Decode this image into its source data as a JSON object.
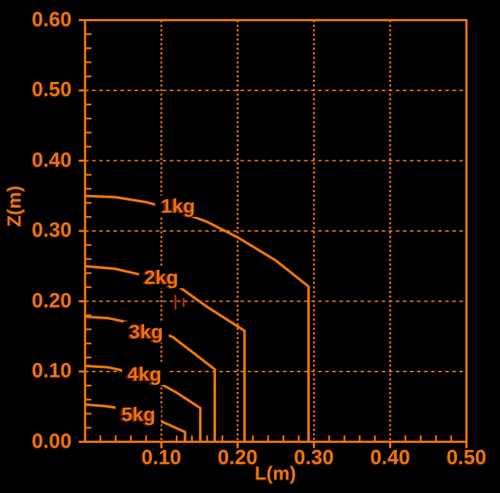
{
  "colors": {
    "background": "#000000",
    "accent": "#ED7409",
    "curve": "#F07806",
    "marker": "#C53000"
  },
  "axes": {
    "x": {
      "label": "L(m)",
      "min": 0,
      "max": 0.5,
      "major_ticks": [
        0.1,
        0.2,
        0.3,
        0.4,
        0.5
      ],
      "tick_labels": [
        "0.10",
        "0.20",
        "0.30",
        "0.40",
        "0.50"
      ],
      "grid": [
        0.1,
        0.2,
        0.3,
        0.4
      ],
      "minor_step": 0.02
    },
    "y": {
      "label": "Z(m)",
      "min": 0,
      "max": 0.6,
      "major_ticks": [
        0.0,
        0.1,
        0.2,
        0.3,
        0.4,
        0.5,
        0.6
      ],
      "tick_labels": [
        "0.00",
        "0.10",
        "0.20",
        "0.30",
        "0.40",
        "0.50",
        "0.60"
      ],
      "grid": [
        0.1,
        0.2,
        0.3,
        0.4,
        0.5
      ],
      "minor_step": 0.02
    }
  },
  "chart_data": {
    "type": "line",
    "xlabel": "L(m)",
    "ylabel": "Z(m)",
    "xlim": [
      0,
      0.5
    ],
    "ylim": [
      0,
      0.6
    ],
    "grid": "dashed",
    "legend_position": "inline-labels",
    "description": "Payload capacity envelopes: each curve shows max vertical reach Z versus horizontal reach L for a given load, ending in a vertical drop to Z=0.",
    "series": [
      {
        "name": "1kg",
        "label_at": [
          0.122,
          0.335
        ],
        "drop_at_l": 0.293,
        "points": [
          [
            0,
            0.35
          ],
          [
            0.04,
            0.348
          ],
          [
            0.08,
            0.341
          ],
          [
            0.12,
            0.329
          ],
          [
            0.16,
            0.313
          ],
          [
            0.2,
            0.291
          ],
          [
            0.25,
            0.258
          ],
          [
            0.293,
            0.221
          ],
          [
            0.293,
            0
          ]
        ]
      },
      {
        "name": "2kg",
        "label_at": [
          0.1,
          0.234
        ],
        "drop_at_l": 0.209,
        "points": [
          [
            0,
            0.25
          ],
          [
            0.04,
            0.246
          ],
          [
            0.08,
            0.236
          ],
          [
            0.12,
            0.223
          ],
          [
            0.16,
            0.192
          ],
          [
            0.209,
            0.158
          ],
          [
            0.209,
            0
          ]
        ]
      },
      {
        "name": "3kg",
        "label_at": [
          0.08,
          0.156
        ],
        "drop_at_l": 0.17,
        "points": [
          [
            0,
            0.178
          ],
          [
            0.03,
            0.176
          ],
          [
            0.06,
            0.169
          ],
          [
            0.09,
            0.159
          ],
          [
            0.115,
            0.149
          ],
          [
            0.145,
            0.124
          ],
          [
            0.17,
            0.103
          ],
          [
            0.17,
            0
          ]
        ]
      },
      {
        "name": "4kg",
        "label_at": [
          0.078,
          0.0955
        ],
        "drop_at_l": 0.151,
        "points": [
          [
            0,
            0.108
          ],
          [
            0.03,
            0.106
          ],
          [
            0.06,
            0.099
          ],
          [
            0.09,
            0.088
          ],
          [
            0.12,
            0.07
          ],
          [
            0.151,
            0.048
          ],
          [
            0.151,
            0
          ]
        ]
      },
      {
        "name": "5kg",
        "label_at": [
          0.07,
          0.039
        ],
        "drop_at_l": 0.131,
        "points": [
          [
            0,
            0.053
          ],
          [
            0.025,
            0.051
          ],
          [
            0.05,
            0.047
          ],
          [
            0.075,
            0.04
          ],
          [
            0.1,
            0.029
          ],
          [
            0.131,
            0.014
          ],
          [
            0.131,
            0
          ]
        ]
      }
    ],
    "markers": [
      {
        "l": 0.1185,
        "z_from": 0.188,
        "z_to": 0.209
      },
      {
        "l": 0.1292,
        "z_from": 0.192,
        "z_to": 0.2045
      }
    ]
  }
}
